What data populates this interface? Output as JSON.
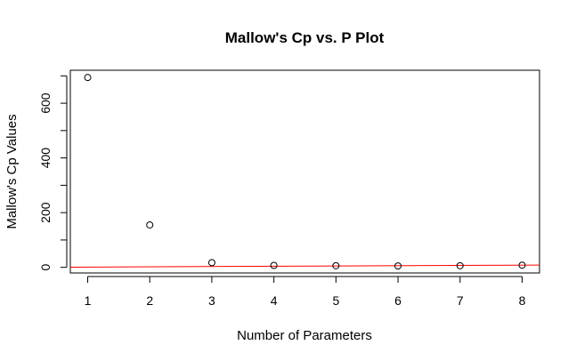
{
  "chart_data": {
    "type": "scatter",
    "title": "Mallow's Cp vs. P Plot",
    "xlabel": "Number of Parameters",
    "ylabel": "Mallow's Cp Values",
    "x": [
      1,
      2,
      3,
      4,
      5,
      6,
      7,
      8
    ],
    "y": [
      694,
      155,
      17,
      7,
      6,
      5,
      6,
      8
    ],
    "xlim": [
      0.72,
      8.28
    ],
    "ylim": [
      -20.6,
      720.6
    ],
    "x_ticks": [
      1,
      2,
      3,
      4,
      5,
      6,
      7,
      8
    ],
    "x_tick_labels": [
      "1",
      "2",
      "3",
      "4",
      "5",
      "6",
      "7",
      "8"
    ],
    "y_ticks": [
      0,
      100,
      200,
      300,
      400,
      500,
      600,
      700
    ],
    "y_tick_labels": [
      "0",
      "",
      "200",
      "",
      "400",
      "",
      "600",
      ""
    ],
    "reference_line": {
      "intercept": 0,
      "slope": 1,
      "color": "#ff0000"
    },
    "point_color": "#000000",
    "grid": false,
    "legend": "none"
  }
}
